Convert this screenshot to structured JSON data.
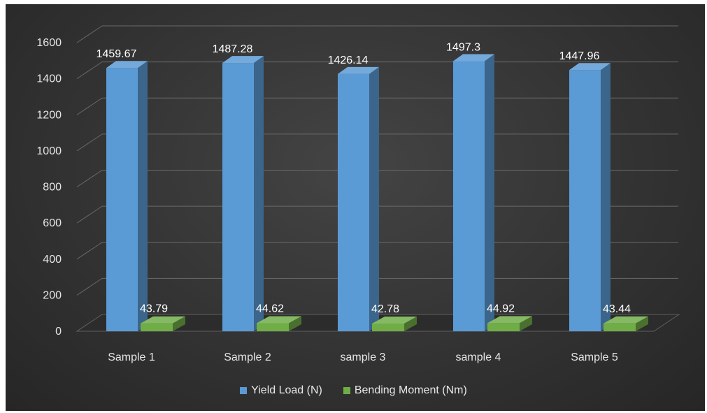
{
  "chart_data": {
    "type": "bar",
    "categories": [
      "Sample 1",
      "Sample 2",
      "sample 3",
      "sample 4",
      "Sample 5"
    ],
    "series": [
      {
        "name": "Yield Load (N)",
        "values": [
          1459.67,
          1487.28,
          1426.14,
          1497.3,
          1447.96
        ],
        "labels": [
          "1459.67",
          "1487.28",
          "1426.14",
          "1497.3",
          "1447.96"
        ],
        "color": "#5b9bd5"
      },
      {
        "name": "Bending Moment (Nm)",
        "values": [
          43.79,
          44.62,
          42.78,
          44.92,
          43.44
        ],
        "labels": [
          "43.79",
          "44.62",
          "42.78",
          "44.92",
          "43.44"
        ],
        "color": "#70ad47"
      }
    ],
    "ylim": [
      0,
      1600
    ],
    "yticks": [
      "0",
      "200",
      "400",
      "600",
      "800",
      "1000",
      "1200",
      "1400",
      "1600"
    ],
    "grid": true,
    "legend_position": "bottom",
    "style": "3d-column"
  }
}
